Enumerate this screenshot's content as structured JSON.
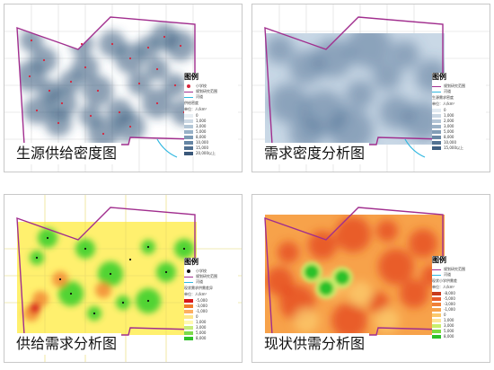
{
  "panels": [
    {
      "caption": "生源供给密度图",
      "legend_title": "图例",
      "legend_lines": [
        "小学校",
        "规划研究范围",
        "河道"
      ],
      "legend_subtitle": "供给密度",
      "legend_unit": "单位：人/km²",
      "legend_ramp": [
        "#e8eef3",
        "#cdd9e4",
        "#b3c6d6",
        "#97b1c7",
        "#7d9bb6",
        "#6585a4",
        "#4f6f90",
        "#3a587a"
      ],
      "legend_ramp_labels": [
        "0",
        "1,000",
        "3,000",
        "5,000",
        "8,000",
        "10,000",
        "15,000",
        "20,000以上"
      ],
      "colors": {
        "base": "#ffffff",
        "blob": "#2e5378",
        "dot": "#d7263d"
      }
    },
    {
      "caption": "需求密度分析图",
      "legend_title": "图例",
      "legend_lines": [
        "规划研究范围",
        "河道"
      ],
      "legend_subtitle": "生源需求密度",
      "legend_unit": "单位：人/km²",
      "legend_ramp": [
        "#e3ebf2",
        "#cbd8e4",
        "#b3c5d6",
        "#9ab1c6",
        "#829db6",
        "#6a88a5",
        "#537393",
        "#3e5e80"
      ],
      "legend_ramp_labels": [
        "0",
        "1,000",
        "2,000",
        "3,000",
        "5,000",
        "8,000",
        "10,000",
        "15,000以上"
      ],
      "colors": {
        "base": "#c9d8e6",
        "blob": "#3d6287"
      }
    },
    {
      "caption": "供给需求分析图",
      "legend_title": "图例",
      "legend_lines": [
        "小学校",
        "规划研究范围",
        "河道"
      ],
      "legend_subtitle": "现状需求供需差异",
      "legend_unit": "单位：人/km²",
      "legend_ramp": [
        "#d7191c",
        "#f07c2c",
        "#fdae61",
        "#fde68a",
        "#fff9b0",
        "#c6ec7a",
        "#7ddb4b",
        "#2fc12a"
      ],
      "legend_ramp_labels": [
        "-5,000",
        "-3,000",
        "-1,000",
        "0",
        "1,000",
        "3,000",
        "5,000",
        "8,000"
      ],
      "colors": {
        "base": "#fff06e",
        "blob": "#3fd02d",
        "dot": "#111111"
      }
    },
    {
      "caption": "现状供需分析图",
      "legend_title": "图例",
      "legend_lines": [
        "规划研究范围",
        "河道"
      ],
      "legend_subtitle": "现状小学供需差",
      "legend_unit": "单位：人/km²",
      "legend_ramp": [
        "#c83a1c",
        "#e85a28",
        "#f07f37",
        "#f7a24a",
        "#fbc96b",
        "#fde79a",
        "#c8ef6c",
        "#7cdb3e",
        "#2cc12a"
      ],
      "legend_ramp_labels": [
        "-8,000",
        "-5,000",
        "-3,000",
        "-1,000",
        "0",
        "1,000",
        "3,000",
        "5,000",
        "8,000"
      ],
      "colors": {
        "base": "#f7a24a",
        "blob": "#e3401e",
        "green": "#2cc12a"
      }
    }
  ]
}
